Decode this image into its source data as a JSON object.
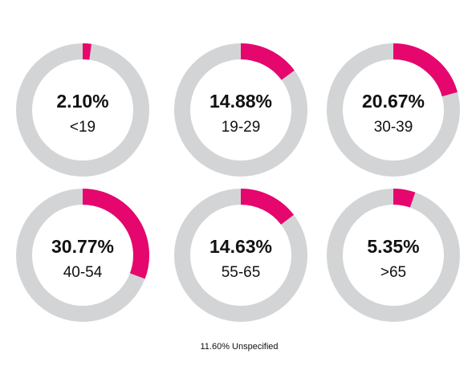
{
  "chart_data": [
    {
      "type": "donut",
      "categories": [
        "<19"
      ],
      "values": [
        2.1
      ],
      "value_labels": [
        "2.10%"
      ],
      "color": "#e5066e",
      "track_color": "#d3d4d5"
    },
    {
      "type": "donut",
      "categories": [
        "19-29"
      ],
      "values": [
        14.88
      ],
      "value_labels": [
        "14.88%"
      ],
      "color": "#e5066e",
      "track_color": "#d3d4d5"
    },
    {
      "type": "donut",
      "categories": [
        "30-39"
      ],
      "values": [
        20.67
      ],
      "value_labels": [
        "20.67%"
      ],
      "color": "#e5066e",
      "track_color": "#d3d4d5"
    },
    {
      "type": "donut",
      "categories": [
        "40-54"
      ],
      "values": [
        30.77
      ],
      "value_labels": [
        "30.77%"
      ],
      "color": "#e5066e",
      "track_color": "#d3d4d5"
    },
    {
      "type": "donut",
      "categories": [
        "55-65"
      ],
      "values": [
        14.63
      ],
      "value_labels": [
        "14.63%"
      ],
      "color": "#e5066e",
      "track_color": "#d3d4d5"
    },
    {
      "type": "donut",
      "categories": [
        ">65"
      ],
      "values": [
        5.35
      ],
      "value_labels": [
        "5.35%"
      ],
      "color": "#e5066e",
      "track_color": "#d3d4d5"
    }
  ],
  "footnote": "11.60% Unspecified"
}
